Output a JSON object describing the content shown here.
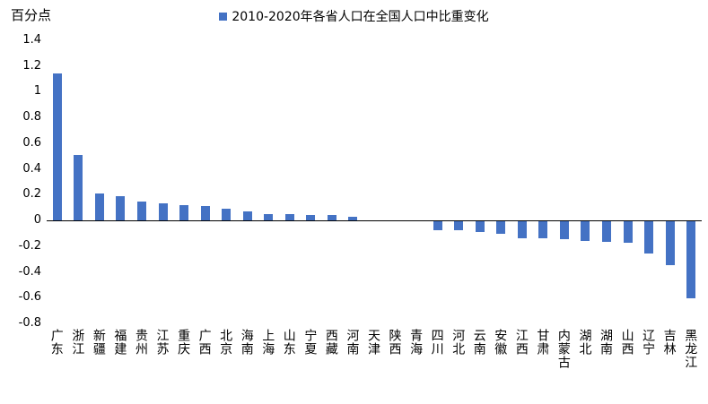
{
  "chart_data": {
    "type": "bar",
    "title": "2010-2020年各省人口在全国人口中比重变化",
    "ylabel": "百分点",
    "xlabel": "",
    "ylim": [
      -0.8,
      1.4
    ],
    "y_ticks": [
      "1.4",
      "1.2",
      "1",
      "0.8",
      "0.6",
      "0.4",
      "0.2",
      "0",
      "-0.2",
      "-0.4",
      "-0.6",
      "-0.8"
    ],
    "bar_color": "#4472C4",
    "grid": false,
    "legend_position": "top-center",
    "categories": [
      "广东",
      "浙江",
      "新疆",
      "福建",
      "贵州",
      "江苏",
      "重庆",
      "广西",
      "北京",
      "海南",
      "上海",
      "山东",
      "宁夏",
      "西藏",
      "河南",
      "天津",
      "陕西",
      "青海",
      "四川",
      "河北",
      "云南",
      "安徽",
      "江西",
      "甘肃",
      "内蒙古",
      "湖北",
      "湖南",
      "山西",
      "辽宁",
      "吉林",
      "黑龙江"
    ],
    "values": [
      1.14,
      0.51,
      0.21,
      0.19,
      0.15,
      0.13,
      0.12,
      0.11,
      0.09,
      0.07,
      0.05,
      0.05,
      0.04,
      0.04,
      0.03,
      0.0,
      0.0,
      0.0,
      -0.07,
      -0.07,
      -0.08,
      -0.1,
      -0.13,
      -0.13,
      -0.14,
      -0.15,
      -0.16,
      -0.17,
      -0.25,
      -0.34,
      -0.6
    ]
  }
}
